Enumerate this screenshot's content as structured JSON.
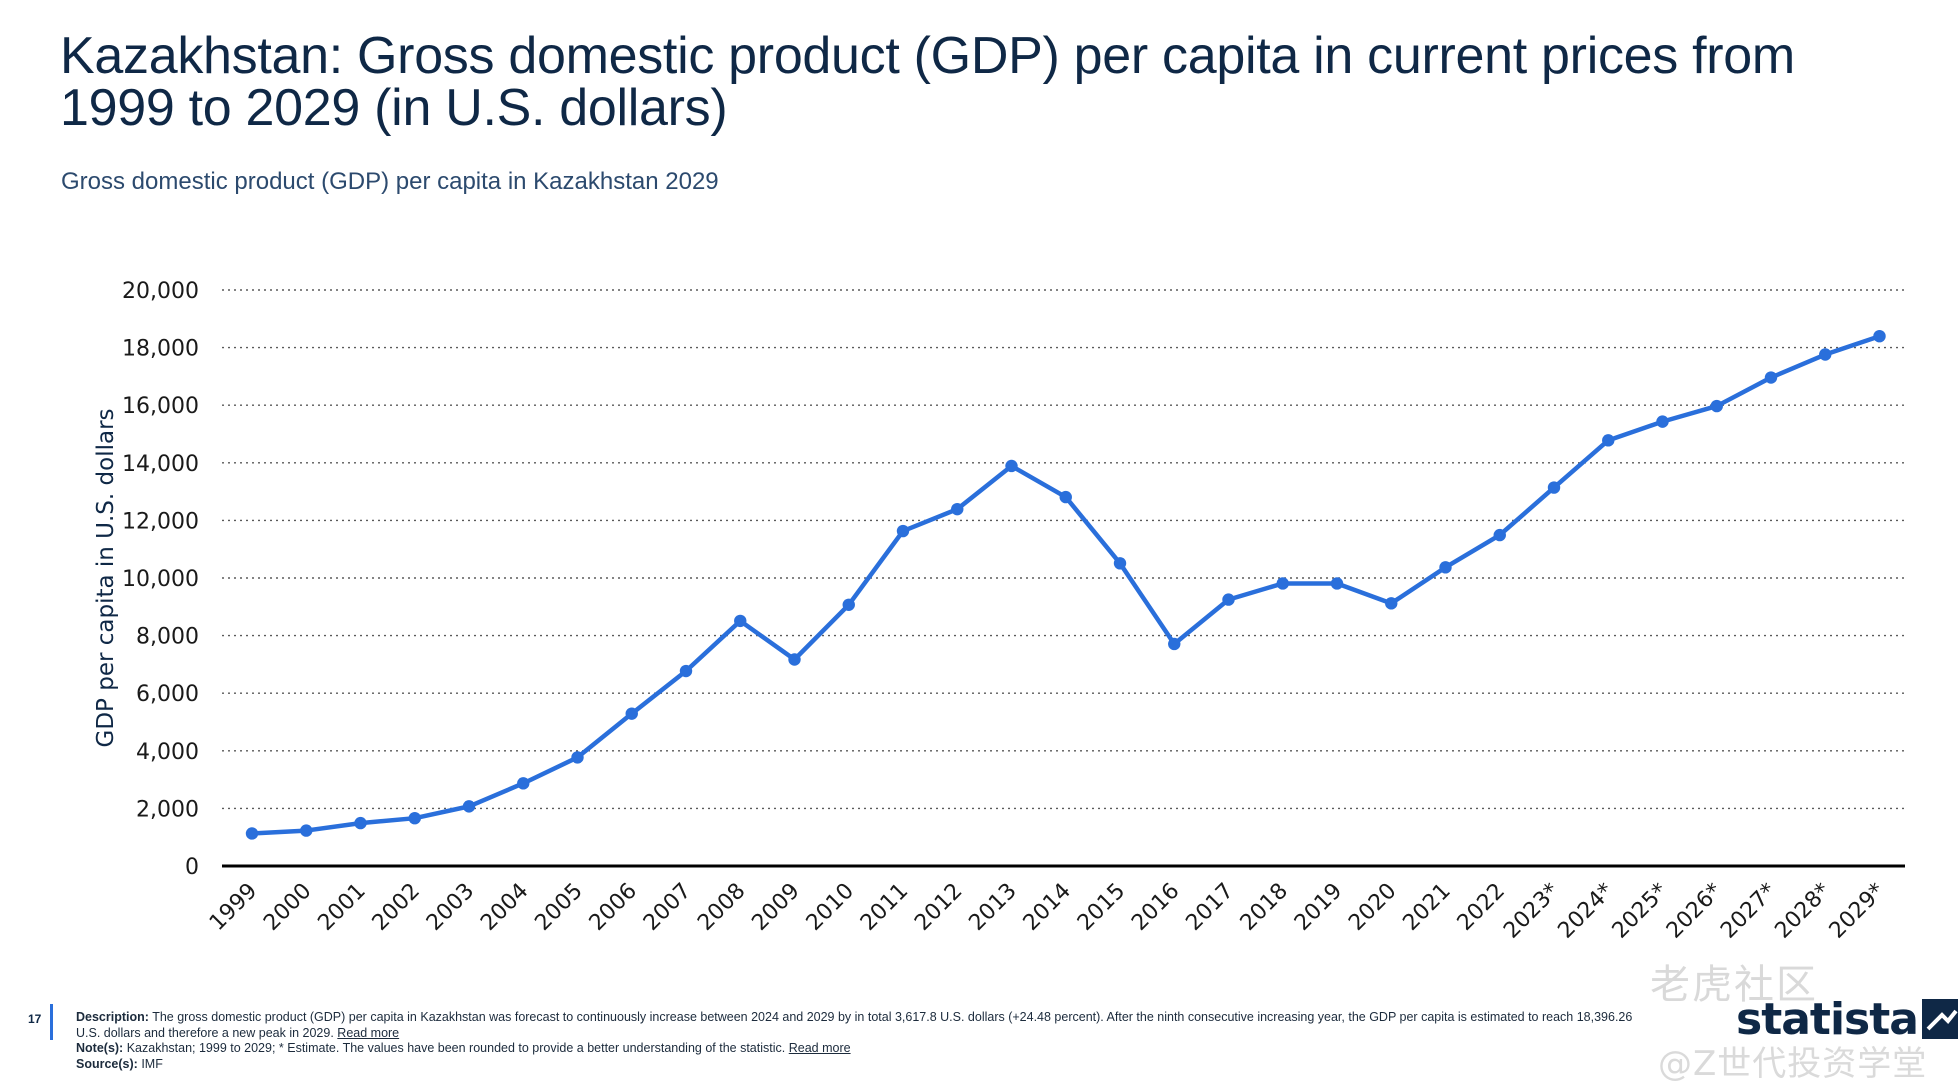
{
  "header": {
    "title": "Kazakhstan: Gross domestic product (GDP) per capita in current prices from 1999 to 2029 (in U.S. dollars)",
    "subtitle": "Gross domestic product (GDP) per capita in Kazakhstan 2029"
  },
  "chart_data": {
    "type": "line",
    "title": "",
    "xlabel": "",
    "ylabel": "GDP per capita in U.S. dollars",
    "ylim": [
      0,
      20000
    ],
    "yticks": [
      0,
      2000,
      4000,
      6000,
      8000,
      10000,
      12000,
      14000,
      16000,
      18000,
      20000
    ],
    "ytick_labels": [
      "0",
      "2,000",
      "4,000",
      "6,000",
      "8,000",
      "10,000",
      "12,000",
      "14,000",
      "16,000",
      "18,000",
      "20,000"
    ],
    "grid": "horizontal dotted",
    "categories": [
      "1999",
      "2000",
      "2001",
      "2002",
      "2003",
      "2004",
      "2005",
      "2006",
      "2007",
      "2008",
      "2009",
      "2010",
      "2011",
      "2012",
      "2013",
      "2014",
      "2015",
      "2016",
      "2017",
      "2018",
      "2019",
      "2020",
      "2021",
      "2022",
      "2023*",
      "2024*",
      "2025*",
      "2026*",
      "2027*",
      "2028*",
      "2029*"
    ],
    "series": [
      {
        "values": [
          1130,
          1230,
          1490,
          1660,
          2070,
          2870,
          3770,
          5290,
          6770,
          8510,
          7170,
          9070,
          11630,
          12390,
          13890,
          12810,
          10510,
          7710,
          9250,
          9810,
          9810,
          9120,
          10370,
          11490,
          13140,
          14780,
          15430,
          15970,
          16960,
          17760,
          18396
        ]
      }
    ],
    "colors": {
      "line": "#2a6fdb",
      "grid": "#5a5a5a",
      "axis": "#000000"
    }
  },
  "footer": {
    "page_number": "17",
    "description_label": "Description:",
    "description_text": "The gross domestic product (GDP) per capita in Kazakhstan was forecast to continuously increase between 2024 and 2029 by in total 3,617.8 U.S. dollars (+24.48 percent). After the ninth consecutive increasing year, the GDP per capita is estimated to reach 18,396.26 U.S. dollars and therefore a new peak in 2029.",
    "read_more_1": "Read more",
    "notes_label": "Note(s):",
    "notes_text": "Kazakhstan; 1999 to 2029; * Estimate. The values have been rounded to provide a better understanding of the statistic.",
    "read_more_2": "Read more",
    "source_label": "Source(s):",
    "source_text": "IMF"
  },
  "logo": {
    "text": "statista"
  },
  "watermark": {
    "line1": "老虎社区",
    "line2": "@Z世代投资学堂"
  }
}
